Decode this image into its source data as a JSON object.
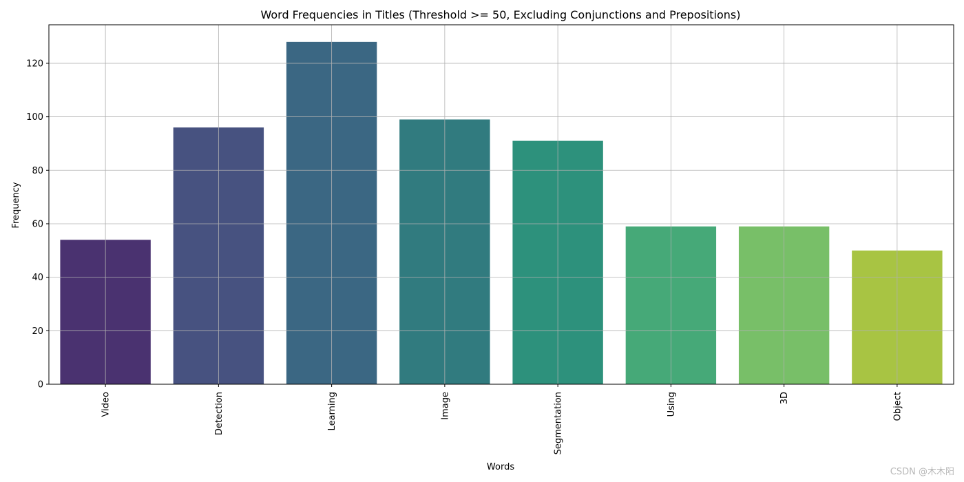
{
  "chart_data": {
    "type": "bar",
    "title": "Word Frequencies in Titles (Threshold >= 50, Excluding Conjunctions and Prepositions)",
    "xlabel": "Words",
    "ylabel": "Frequency",
    "categories": [
      "Video",
      "Detection",
      "Learning",
      "Image",
      "Segmentation",
      "Using",
      "3D",
      "Object"
    ],
    "values": [
      54,
      96,
      128,
      99,
      91,
      59,
      59,
      50
    ],
    "colors": [
      "#4a3270",
      "#475280",
      "#3b6783",
      "#317b7f",
      "#2d917c",
      "#46a978",
      "#78bf68",
      "#a8c443"
    ],
    "yticks": [
      0,
      20,
      40,
      60,
      80,
      100,
      120
    ],
    "ylim": [
      0,
      134.4
    ],
    "grid": true,
    "xtick_rotation": 90
  },
  "watermark": "CSDN @木木阳"
}
